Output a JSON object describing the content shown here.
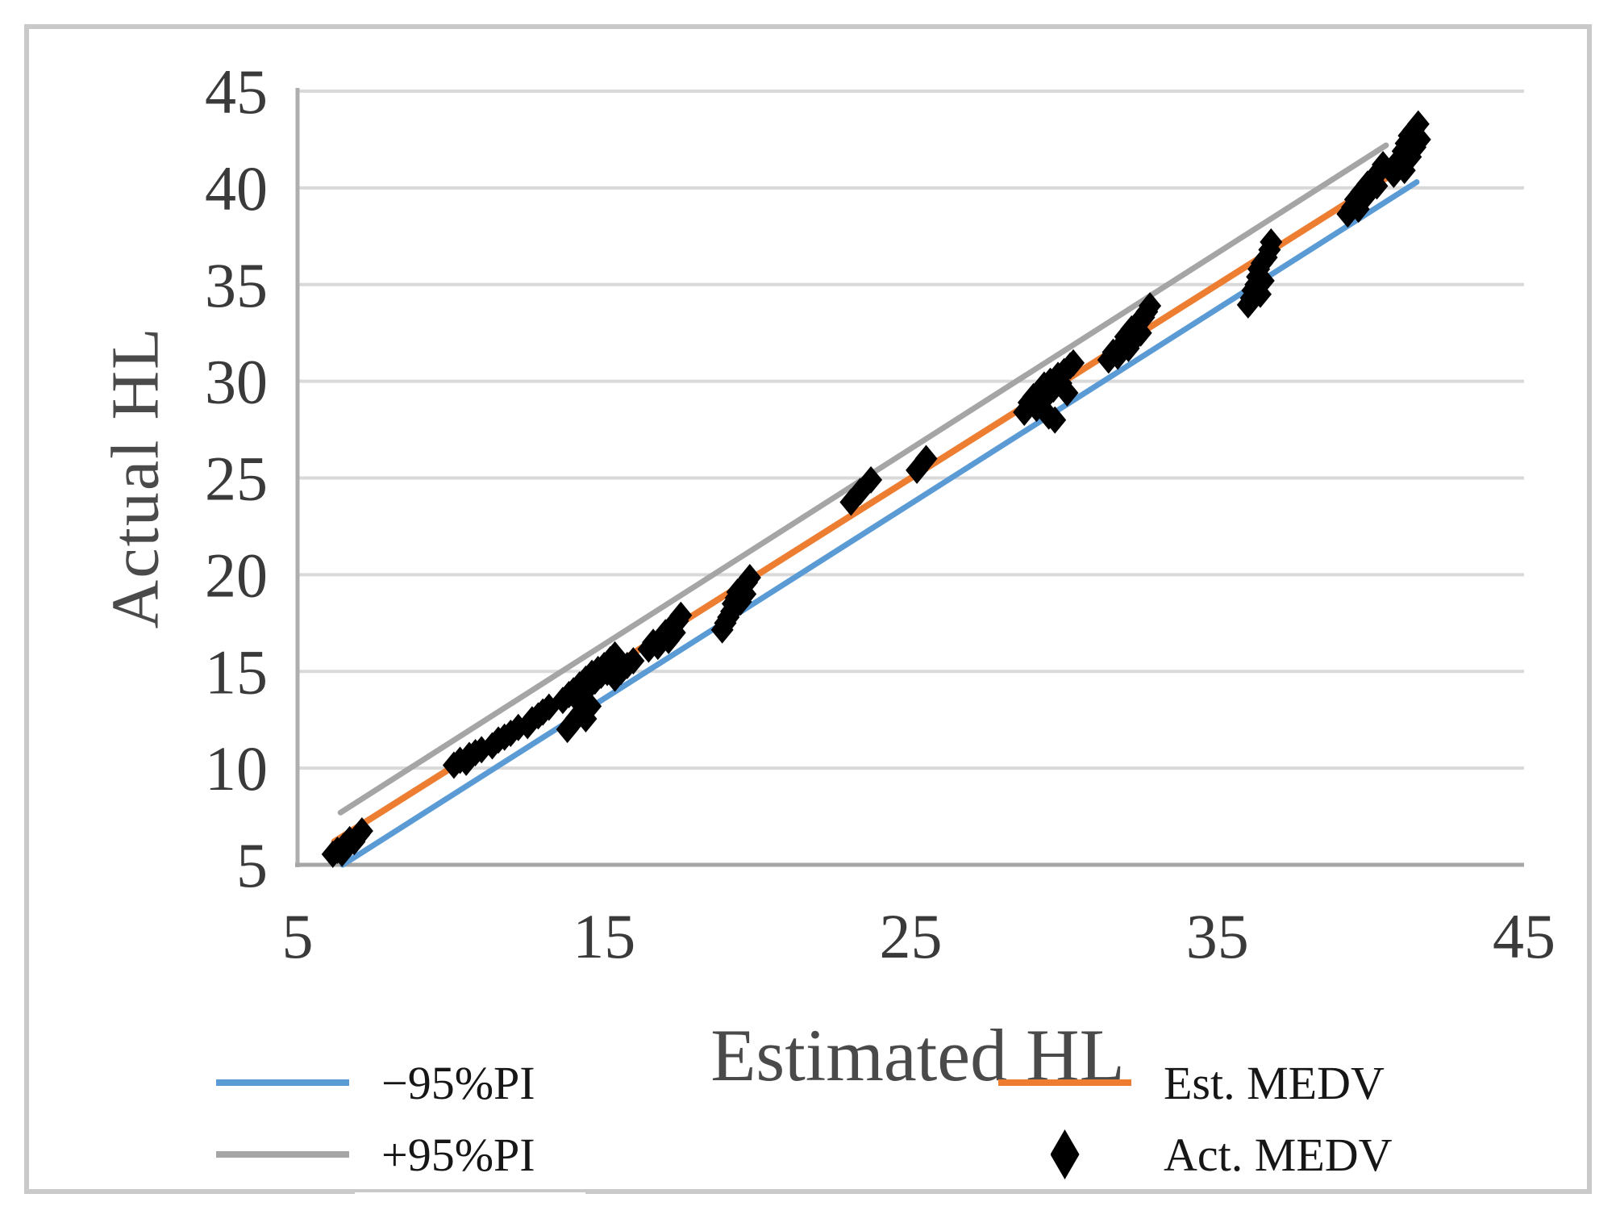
{
  "chart_data": {
    "type": "scatter",
    "title": "",
    "xlabel": "Estimated HL",
    "ylabel": "Actual HL",
    "xlim": [
      5,
      45
    ],
    "ylim": [
      5,
      45
    ],
    "x_ticks": [
      5,
      15,
      25,
      35,
      45
    ],
    "y_ticks": [
      5,
      10,
      15,
      20,
      25,
      30,
      35,
      40,
      45
    ],
    "grid": "horizontal-only",
    "legend_position": "bottom",
    "series": [
      {
        "name": "−95%PI",
        "type": "line",
        "color": "#5B9BD5",
        "width": 7,
        "points": [
          [
            6.47,
            5.0
          ],
          [
            41.5,
            40.3
          ]
        ]
      },
      {
        "name": "+95%PI",
        "type": "line",
        "color": "#A5A5A5",
        "width": 7,
        "points": [
          [
            6.4,
            7.7
          ],
          [
            40.5,
            42.2
          ]
        ]
      },
      {
        "name": "Est. MEDV",
        "type": "line",
        "color": "#ED7D31",
        "width": 8,
        "points": [
          [
            6.2,
            6.2
          ],
          [
            41.3,
            41.3
          ]
        ]
      },
      {
        "name": "Act. MEDV",
        "type": "scatter",
        "color": "#000000",
        "marker": "diamond",
        "points": [
          [
            6.15,
            5.55
          ],
          [
            6.3,
            5.75
          ],
          [
            6.45,
            5.6
          ],
          [
            6.5,
            5.95
          ],
          [
            6.6,
            6.1
          ],
          [
            6.7,
            6.3
          ],
          [
            6.85,
            6.2
          ],
          [
            7.0,
            6.55
          ],
          [
            7.1,
            6.75
          ],
          [
            10.1,
            10.15
          ],
          [
            10.3,
            10.4
          ],
          [
            10.5,
            10.3
          ],
          [
            10.6,
            10.65
          ],
          [
            10.8,
            10.8
          ],
          [
            11.0,
            10.95
          ],
          [
            11.35,
            11.15
          ],
          [
            11.55,
            11.45
          ],
          [
            11.75,
            11.6
          ],
          [
            11.95,
            11.8
          ],
          [
            12.2,
            12.1
          ],
          [
            12.5,
            12.2
          ],
          [
            12.65,
            12.5
          ],
          [
            12.85,
            12.7
          ],
          [
            13.0,
            12.9
          ],
          [
            13.2,
            13.15
          ],
          [
            13.8,
            12.0
          ],
          [
            13.95,
            12.3
          ],
          [
            14.1,
            12.6
          ],
          [
            14.25,
            12.9
          ],
          [
            14.4,
            12.55
          ],
          [
            14.55,
            13.2
          ],
          [
            13.65,
            13.5
          ],
          [
            13.85,
            13.8
          ],
          [
            14.0,
            14.0
          ],
          [
            14.1,
            13.6
          ],
          [
            14.2,
            14.3
          ],
          [
            14.3,
            14.0
          ],
          [
            14.4,
            14.6
          ],
          [
            14.5,
            14.2
          ],
          [
            14.6,
            14.9
          ],
          [
            14.7,
            14.5
          ],
          [
            14.8,
            15.1
          ],
          [
            14.9,
            14.8
          ],
          [
            15.0,
            15.3
          ],
          [
            15.1,
            14.95
          ],
          [
            15.2,
            15.6
          ],
          [
            15.35,
            15.85
          ],
          [
            15.35,
            14.65
          ],
          [
            15.55,
            15.0
          ],
          [
            15.75,
            15.3
          ],
          [
            15.95,
            15.55
          ],
          [
            16.45,
            16.15
          ],
          [
            16.6,
            16.5
          ],
          [
            16.75,
            16.3
          ],
          [
            16.9,
            16.8
          ],
          [
            17.0,
            17.0
          ],
          [
            17.1,
            16.6
          ],
          [
            17.2,
            17.3
          ],
          [
            17.3,
            17.0
          ],
          [
            17.4,
            17.6
          ],
          [
            17.5,
            17.9
          ],
          [
            18.85,
            17.15
          ],
          [
            18.95,
            17.5
          ],
          [
            19.05,
            17.8
          ],
          [
            19.15,
            18.1
          ],
          [
            19.2,
            18.5
          ],
          [
            19.3,
            18.8
          ],
          [
            19.35,
            19.1
          ],
          [
            19.45,
            18.6
          ],
          [
            19.5,
            19.35
          ],
          [
            19.6,
            19.0
          ],
          [
            19.65,
            19.6
          ],
          [
            19.75,
            19.85
          ],
          [
            23.05,
            23.75
          ],
          [
            23.35,
            24.3
          ],
          [
            23.7,
            24.9
          ],
          [
            25.2,
            25.4
          ],
          [
            25.5,
            26.0
          ],
          [
            28.7,
            28.4
          ],
          [
            28.85,
            28.9
          ],
          [
            29.0,
            29.2
          ],
          [
            29.1,
            28.6
          ],
          [
            29.2,
            29.5
          ],
          [
            29.3,
            29.0
          ],
          [
            29.35,
            29.8
          ],
          [
            29.45,
            29.3
          ],
          [
            29.5,
            28.2
          ],
          [
            29.55,
            30.0
          ],
          [
            29.65,
            29.6
          ],
          [
            29.7,
            28.0
          ],
          [
            29.8,
            30.3
          ],
          [
            29.9,
            29.9
          ],
          [
            30.0,
            30.5
          ],
          [
            30.1,
            29.4
          ],
          [
            30.2,
            30.8
          ],
          [
            30.3,
            30.95
          ],
          [
            31.45,
            31.1
          ],
          [
            31.6,
            31.5
          ],
          [
            31.75,
            31.3
          ],
          [
            31.9,
            31.9
          ],
          [
            32.0,
            32.3
          ],
          [
            32.1,
            31.7
          ],
          [
            32.2,
            32.7
          ],
          [
            32.3,
            32.2
          ],
          [
            32.4,
            33.0
          ],
          [
            32.5,
            32.5
          ],
          [
            32.6,
            33.3
          ],
          [
            32.7,
            33.6
          ],
          [
            32.8,
            33.9
          ],
          [
            36.0,
            33.95
          ],
          [
            36.1,
            34.3
          ],
          [
            36.15,
            34.7
          ],
          [
            36.25,
            35.0
          ],
          [
            36.3,
            35.4
          ],
          [
            36.35,
            35.8
          ],
          [
            36.4,
            34.5
          ],
          [
            36.45,
            36.1
          ],
          [
            36.5,
            35.2
          ],
          [
            36.6,
            36.4
          ],
          [
            36.7,
            36.8
          ],
          [
            36.75,
            37.2
          ],
          [
            39.25,
            38.65
          ],
          [
            39.4,
            39.0
          ],
          [
            39.5,
            39.4
          ],
          [
            39.6,
            38.9
          ],
          [
            39.7,
            39.8
          ],
          [
            39.8,
            39.5
          ],
          [
            39.9,
            40.2
          ],
          [
            40.0,
            39.9
          ],
          [
            40.1,
            40.5
          ],
          [
            40.2,
            40.1
          ],
          [
            40.3,
            40.9
          ],
          [
            40.4,
            41.2
          ],
          [
            40.75,
            40.7
          ],
          [
            40.85,
            41.1
          ],
          [
            40.95,
            41.5
          ],
          [
            41.05,
            41.9
          ],
          [
            41.1,
            40.9
          ],
          [
            41.15,
            42.3
          ],
          [
            41.25,
            42.7
          ],
          [
            41.3,
            41.6
          ],
          [
            41.4,
            43.0
          ],
          [
            41.45,
            42.1
          ],
          [
            41.55,
            43.3
          ],
          [
            41.6,
            42.5
          ]
        ]
      }
    ],
    "legend": {
      "entries": [
        {
          "label": "−95%PI",
          "swatch": "line",
          "color": "#5B9BD5"
        },
        {
          "label": "+95%PI",
          "swatch": "line",
          "color": "#A5A5A5"
        },
        {
          "label": "Est. MEDV",
          "swatch": "line",
          "color": "#ED7D31"
        },
        {
          "label": "Act. MEDV",
          "swatch": "diamond",
          "color": "#000000"
        }
      ]
    },
    "style": {
      "gridline_color": "#d9d9d9",
      "axis_color": "#aeaeae",
      "tick_label_color": "#3a3a3a",
      "point_color": "#000000"
    }
  }
}
